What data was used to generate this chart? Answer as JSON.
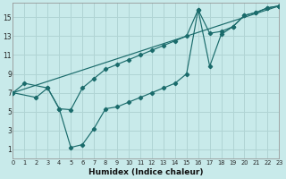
{
  "xlabel": "Humidex (Indice chaleur)",
  "background_color": "#c8eaea",
  "grid_color": "#b0d4d4",
  "line_color": "#1a6b6b",
  "xlim": [
    0,
    23
  ],
  "ylim": [
    0,
    16.5
  ],
  "xticks": [
    0,
    1,
    2,
    3,
    4,
    5,
    6,
    7,
    8,
    9,
    10,
    11,
    12,
    13,
    14,
    15,
    16,
    17,
    18,
    19,
    20,
    21,
    22,
    23
  ],
  "yticks": [
    1,
    3,
    5,
    7,
    9,
    11,
    13,
    15
  ],
  "line1_x": [
    0,
    1,
    3,
    4,
    5,
    6,
    7,
    8,
    9,
    10,
    11,
    12,
    13,
    14,
    15,
    16,
    17,
    18,
    19,
    20,
    21,
    22,
    23
  ],
  "line1_y": [
    7.0,
    8.0,
    7.5,
    5.3,
    1.2,
    1.5,
    3.2,
    5.3,
    5.5,
    6.0,
    6.5,
    7.0,
    7.5,
    8.0,
    9.0,
    15.8,
    9.8,
    13.2,
    14.0,
    15.2,
    15.5,
    16.0,
    16.2
  ],
  "line2_x": [
    0,
    2,
    3,
    4,
    5,
    6,
    7,
    8,
    9,
    10,
    11,
    12,
    13,
    14,
    15,
    16,
    17,
    18,
    19,
    20,
    21,
    22,
    23
  ],
  "line2_y": [
    7.0,
    6.5,
    7.5,
    5.3,
    5.2,
    7.5,
    8.5,
    9.5,
    10.0,
    10.5,
    11.0,
    11.5,
    12.0,
    12.5,
    13.0,
    15.8,
    13.3,
    13.5,
    14.0,
    15.2,
    15.5,
    16.0,
    16.2
  ],
  "line3_x": [
    0,
    23
  ],
  "line3_y": [
    7.0,
    16.2
  ]
}
